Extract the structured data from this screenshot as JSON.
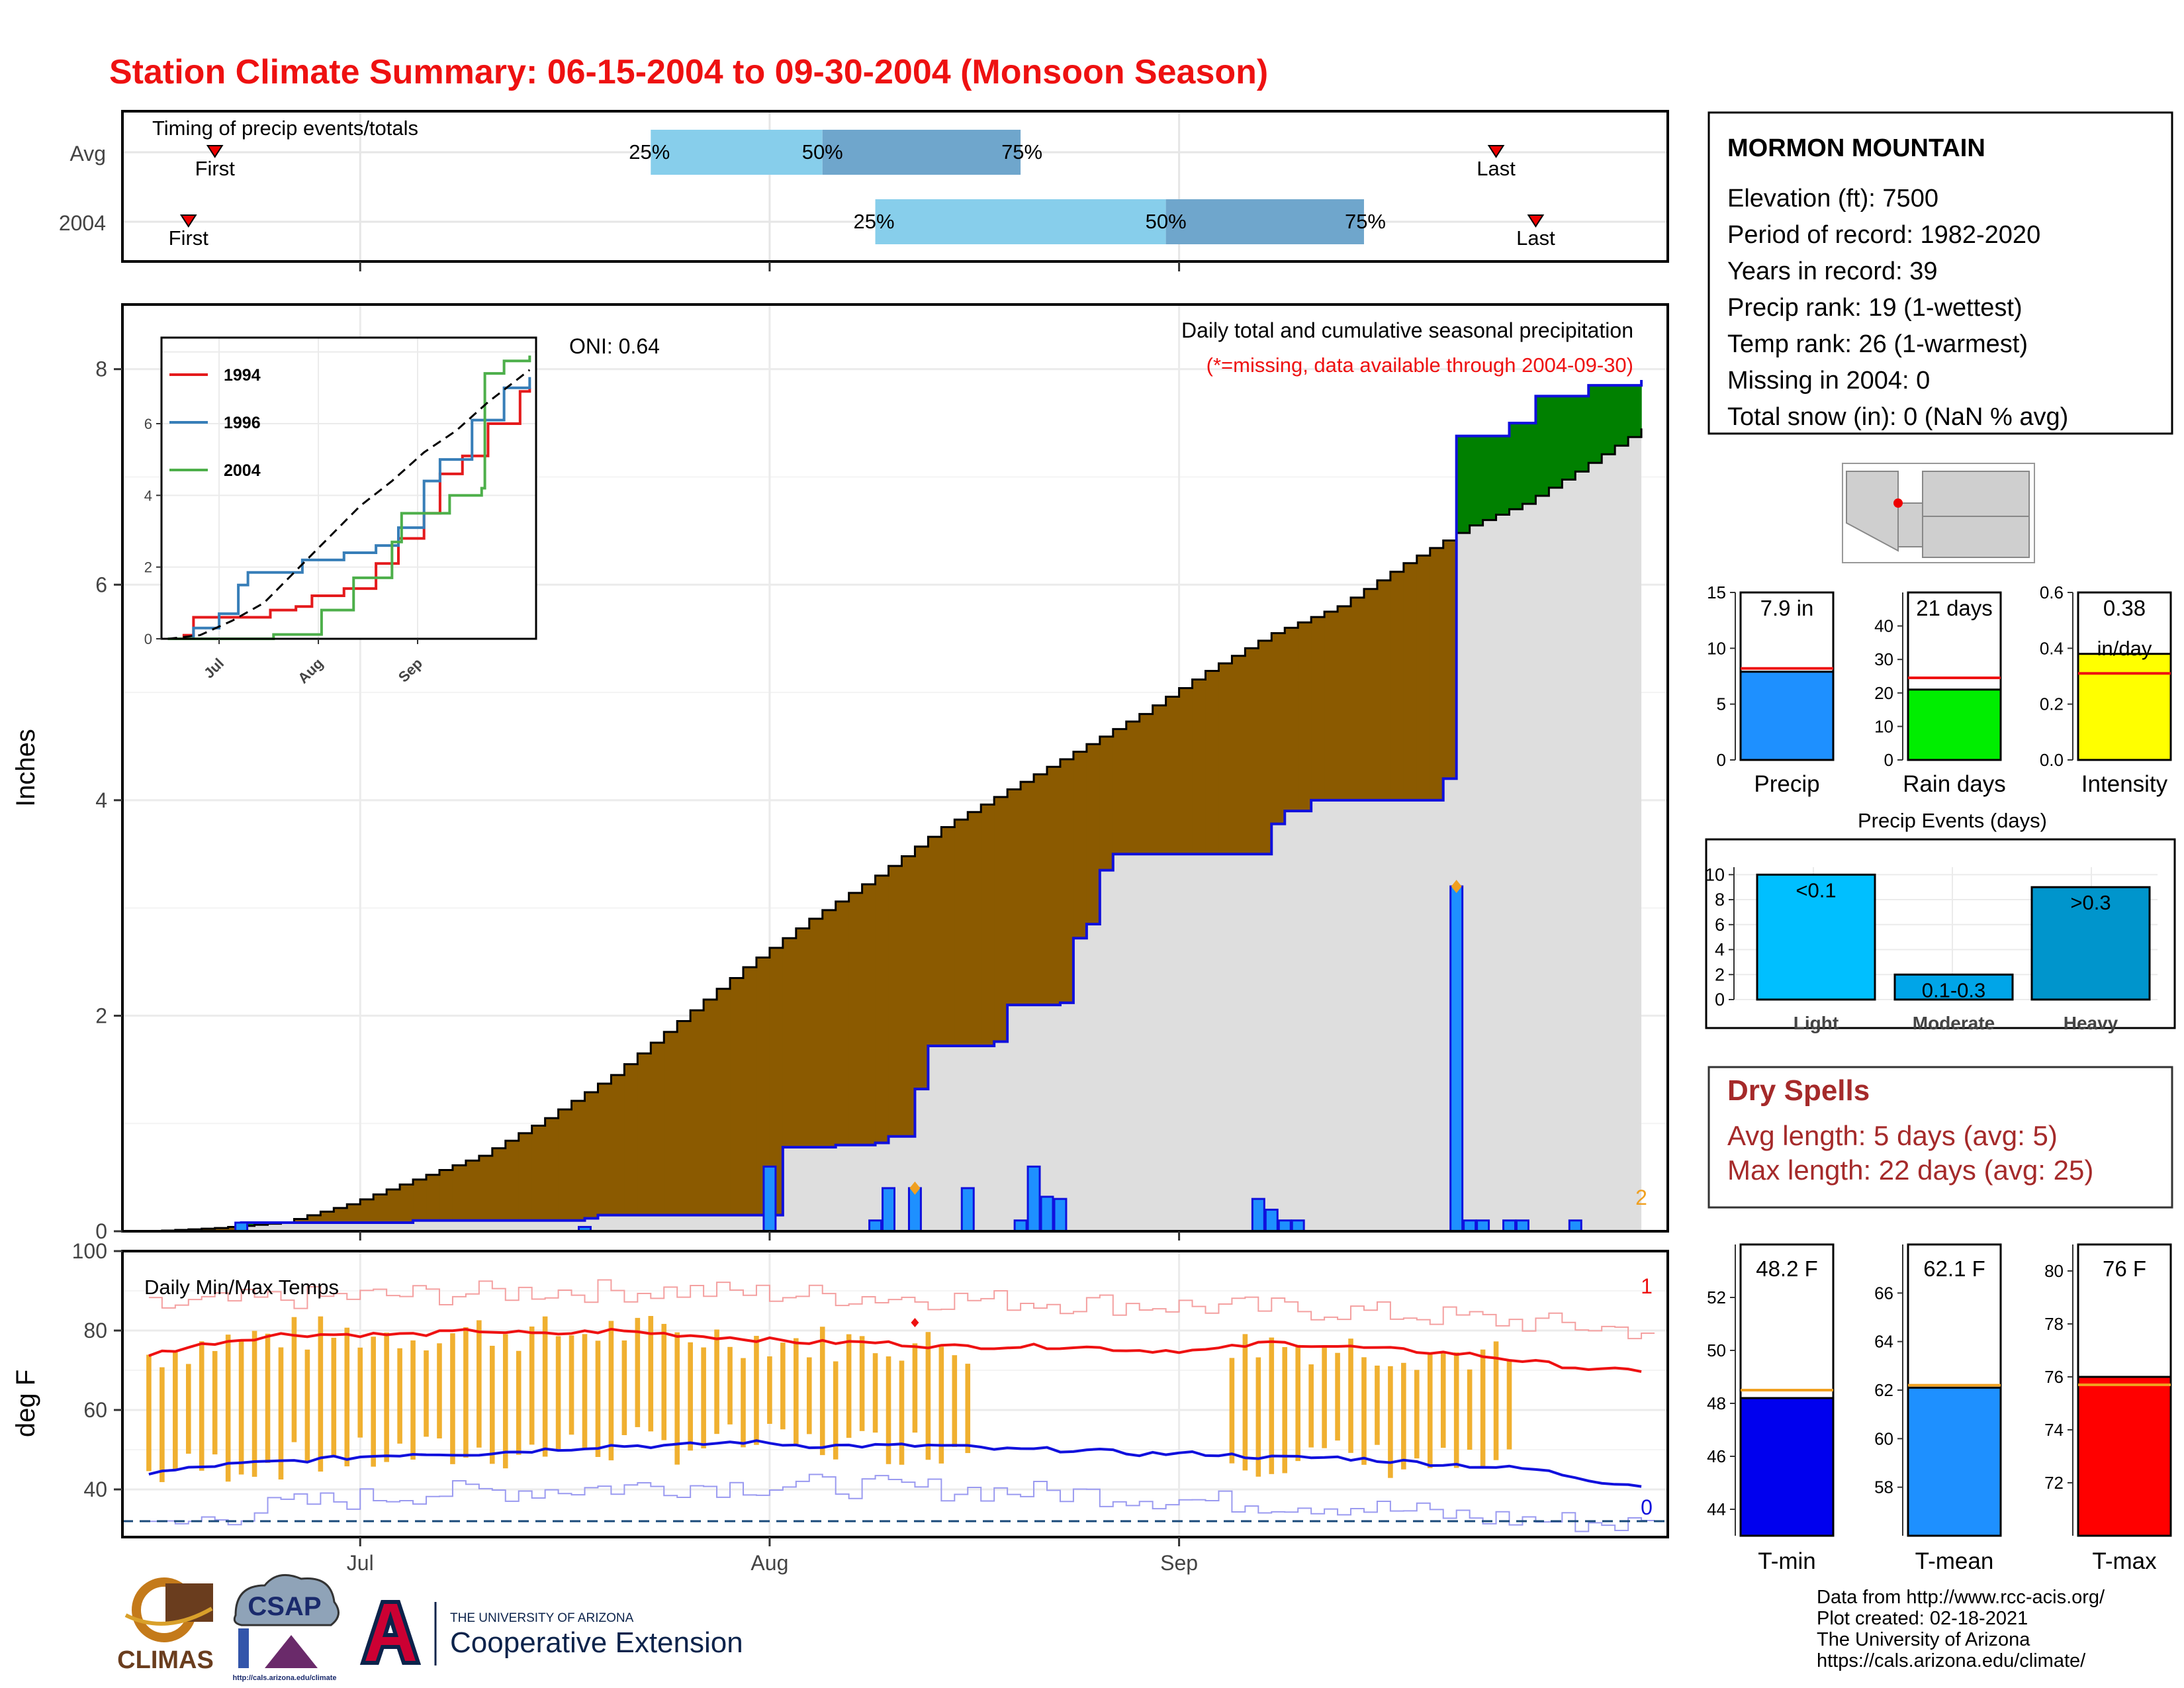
{
  "title": "Station Climate Summary: 06-15-2004 to 09-30-2004 (Monsoon Season)",
  "colors": {
    "title_red": "#ee1111",
    "light_blue": "#87ceeb",
    "mid_blue": "#6fa6cc",
    "brown": "#8b5a00",
    "green": "#008000",
    "bar_blue": "#1e90ff",
    "gold": "#f0b030",
    "tmax_red": "#ee1111",
    "tmin_blue": "#1010dd",
    "dry_red": "#a52a2a"
  },
  "timing": {
    "label": "Timing of precip events/totals",
    "rows": [
      {
        "name": "Avg",
        "first_label": "First",
        "last_label": "Last",
        "first_date": "2004-06-20",
        "last_date": "2004-09-25",
        "p25": "2004-07-23",
        "p50": "2004-08-05",
        "p75": "2004-08-20",
        "p25_label": "25%",
        "p50_label": "50%",
        "p75_label": "75%"
      },
      {
        "name": "2004",
        "first_label": "First",
        "last_label": "Last",
        "first_date": "2004-06-18",
        "last_date": "2004-09-28",
        "p25": "2004-08-09",
        "p50": "2004-08-31",
        "p75": "2004-09-15",
        "p25_label": "25%",
        "p50_label": "50%",
        "p75_label": "75%"
      }
    ]
  },
  "main_panel": {
    "ylabel": "Inches",
    "y_ticks": [
      "0",
      "2",
      "4",
      "6",
      "8"
    ],
    "header": "Daily total and cumulative seasonal precipitation",
    "missing_note": "(*=missing, data available through 2004-09-30)",
    "oni": "ONI: 0.64",
    "corner_count": "2",
    "x_ticks": [
      "Jul",
      "Aug",
      "Sep"
    ]
  },
  "inset": {
    "y_ticks": [
      "0",
      "2",
      "4",
      "6"
    ],
    "x_ticks": [
      "Jul",
      "Aug",
      "Sep"
    ],
    "legend": [
      {
        "name": "1994",
        "color": "#e41a1c"
      },
      {
        "name": "1996",
        "color": "#377eb8"
      },
      {
        "name": "2004",
        "color": "#4daf4a"
      }
    ]
  },
  "temp_panel": {
    "ylabel": "deg F",
    "label": "Daily Min/Max Temps",
    "y_ticks": [
      "40",
      "60",
      "80",
      "100"
    ],
    "count_top": "1",
    "count_bottom": "0",
    "x_ticks": [
      "Jul",
      "Aug",
      "Sep"
    ]
  },
  "station": {
    "name": "MORMON MOUNTAIN",
    "lines": [
      "Elevation (ft): 7500",
      "Period of record: 1982-2020",
      "Years in record: 39",
      "Precip rank: 19 (1-wettest)",
      "Temp rank: 26 (1-warmest)",
      "Missing in 2004: 0",
      "Total snow (in): 0 (NaN % avg)"
    ]
  },
  "small_bars": [
    {
      "id": "precip",
      "label": "Precip",
      "value_text": "7.9 in",
      "value": 7.9,
      "avg": 8.2,
      "ymax": 15,
      "ticks": [
        "0",
        "5",
        "10",
        "15"
      ],
      "color": "#1e90ff"
    },
    {
      "id": "raindays",
      "label": "Rain days",
      "value_text": "21 days",
      "value": 21,
      "avg": 24.5,
      "ymax": 50,
      "ticks": [
        "0",
        "10",
        "20",
        "30",
        "40"
      ],
      "color": "#00ee00"
    },
    {
      "id": "intensity",
      "label": "Intensity",
      "value_text": "0.38",
      "value_text2": "in/day",
      "value": 0.38,
      "avg": 0.31,
      "ymax": 0.6,
      "ticks": [
        "0.0",
        "0.2",
        "0.4",
        "0.6"
      ],
      "color": "#ffff00"
    }
  ],
  "events": {
    "title": "Precip Events (days)",
    "y_ticks": [
      "0",
      "2",
      "4",
      "6",
      "8",
      "10"
    ],
    "bars": [
      {
        "label": "Light",
        "range": "<0.1",
        "value": 10,
        "color": "#00bfff"
      },
      {
        "label": "Moderate",
        "range": "0.1-0.3",
        "value": 2,
        "color": "#00a5e8"
      },
      {
        "label": "Heavy",
        "range": ">0.3",
        "value": 9,
        "color": "#0095cc"
      }
    ]
  },
  "dry_spells": {
    "title": "Dry Spells",
    "avg_line": "Avg length: 5 days (avg: 5)",
    "max_line": "Max length: 22 days (avg: 25)"
  },
  "temp_bars": [
    {
      "label": "T-min",
      "value_text": "48.2 F",
      "value": 48.2,
      "avg": 48.5,
      "ymin": 43,
      "ymax": 54,
      "ticks": [
        "44",
        "46",
        "48",
        "50",
        "52"
      ],
      "color": "#0000ee"
    },
    {
      "label": "T-mean",
      "value_text": "62.1 F",
      "value": 62.1,
      "avg": 62.2,
      "ymin": 56,
      "ymax": 68,
      "ticks": [
        "58",
        "60",
        "62",
        "64",
        "66"
      ],
      "color": "#1e90ff"
    },
    {
      "label": "T-max",
      "value_text": "76 F",
      "value": 76.0,
      "avg": 75.7,
      "ymin": 70,
      "ymax": 81,
      "ticks": [
        "72",
        "74",
        "76",
        "78",
        "80"
      ],
      "color": "#ff0000"
    }
  ],
  "footer": {
    "lines": [
      "Data from http://www.rcc-acis.org/",
      "Plot created: 02-18-2021",
      "The University of Arizona",
      "https://cals.arizona.edu/climate/"
    ],
    "logos": {
      "climas": "CLIMAS",
      "csap": "CSAP",
      "csap_url": "http://cals.arizona.edu/climate",
      "ua_line1": "THE UNIVERSITY OF ARIZONA",
      "ua_line2": "Cooperative Extension"
    }
  },
  "chart_data": [
    {
      "type": "area",
      "title": "Daily total and cumulative seasonal precipitation",
      "ylabel": "Inches",
      "ylim": [
        0,
        8.6
      ],
      "x_range": [
        "2004-06-15",
        "2004-09-30"
      ],
      "avg_cumulative": [
        [
          0,
          0
        ],
        [
          5,
          0.03
        ],
        [
          10,
          0.08
        ],
        [
          15,
          0.25
        ],
        [
          20,
          0.48
        ],
        [
          25,
          0.7
        ],
        [
          30,
          1.05
        ],
        [
          35,
          1.45
        ],
        [
          40,
          1.95
        ],
        [
          45,
          2.45
        ],
        [
          50,
          2.9
        ],
        [
          55,
          3.3
        ],
        [
          60,
          3.75
        ],
        [
          65,
          4.1
        ],
        [
          70,
          4.45
        ],
        [
          75,
          4.8
        ],
        [
          80,
          5.2
        ],
        [
          85,
          5.55
        ],
        [
          90,
          5.8
        ],
        [
          95,
          6.2
        ],
        [
          100,
          6.55
        ],
        [
          104,
          6.75
        ],
        [
          108,
          7.05
        ],
        [
          113,
          7.45
        ]
      ],
      "cumulative_2004": [
        [
          0,
          0
        ],
        [
          7,
          0.08
        ],
        [
          20,
          0.1
        ],
        [
          33,
          0.12
        ],
        [
          34,
          0.15
        ],
        [
          47,
          0.15
        ],
        [
          48,
          0.78
        ],
        [
          52,
          0.8
        ],
        [
          55,
          0.82
        ],
        [
          56,
          0.88
        ],
        [
          58,
          1.32
        ],
        [
          59,
          1.72
        ],
        [
          64,
          1.76
        ],
        [
          65,
          2.1
        ],
        [
          69,
          2.12
        ],
        [
          70,
          2.72
        ],
        [
          71,
          2.85
        ],
        [
          72,
          3.35
        ],
        [
          73,
          3.5
        ],
        [
          84,
          3.5
        ],
        [
          85,
          3.78
        ],
        [
          86,
          3.9
        ],
        [
          88,
          4.0
        ],
        [
          98,
          4.2
        ],
        [
          99,
          7.38
        ],
        [
          103,
          7.5
        ],
        [
          105,
          7.75
        ],
        [
          109,
          7.85
        ],
        [
          113,
          7.9
        ]
      ],
      "daily_precip": [
        [
          7,
          0.08
        ],
        [
          33,
          0.04
        ],
        [
          47,
          0.6
        ],
        [
          55,
          0.1
        ],
        [
          56,
          0.4
        ],
        [
          58,
          0.4
        ],
        [
          62,
          0.4
        ],
        [
          66,
          0.1
        ],
        [
          67,
          0.6
        ],
        [
          68,
          0.32
        ],
        [
          69,
          0.3
        ],
        [
          84,
          0.3
        ],
        [
          85,
          0.2
        ],
        [
          86,
          0.1
        ],
        [
          87,
          0.1
        ],
        [
          99,
          3.2
        ],
        [
          100,
          0.1
        ],
        [
          101,
          0.1
        ],
        [
          103,
          0.1
        ],
        [
          104,
          0.1
        ],
        [
          108,
          0.1
        ]
      ],
      "daily_max_markers": [
        [
          58,
          0.4
        ],
        [
          99,
          3.2
        ]
      ]
    },
    {
      "type": "line",
      "title": "Daily Min/Max Temps",
      "ylabel": "deg F",
      "ylim": [
        28,
        100
      ],
      "tmax_avg": [
        [
          0,
          74
        ],
        [
          5,
          77
        ],
        [
          10,
          79
        ],
        [
          15,
          79
        ],
        [
          20,
          79
        ],
        [
          25,
          80
        ],
        [
          30,
          79
        ],
        [
          35,
          80
        ],
        [
          40,
          79
        ],
        [
          45,
          78
        ],
        [
          50,
          77
        ],
        [
          55,
          77
        ],
        [
          60,
          76
        ],
        [
          65,
          76
        ],
        [
          70,
          76
        ],
        [
          75,
          75
        ],
        [
          80,
          75
        ],
        [
          85,
          77
        ],
        [
          90,
          76
        ],
        [
          95,
          75
        ],
        [
          100,
          74
        ],
        [
          105,
          72
        ],
        [
          110,
          70
        ],
        [
          113,
          70
        ]
      ],
      "tmin_avg": [
        [
          0,
          44
        ],
        [
          5,
          46
        ],
        [
          10,
          47
        ],
        [
          15,
          48
        ],
        [
          20,
          49
        ],
        [
          25,
          49
        ],
        [
          30,
          50
        ],
        [
          35,
          51
        ],
        [
          40,
          51
        ],
        [
          45,
          52
        ],
        [
          50,
          51
        ],
        [
          55,
          51
        ],
        [
          60,
          51
        ],
        [
          65,
          50
        ],
        [
          70,
          50
        ],
        [
          75,
          49
        ],
        [
          80,
          49
        ],
        [
          85,
          48
        ],
        [
          90,
          48
        ],
        [
          95,
          47
        ],
        [
          100,
          46
        ],
        [
          105,
          45
        ],
        [
          110,
          42
        ],
        [
          113,
          41
        ]
      ],
      "tmax_record": [
        [
          0,
          86
        ],
        [
          10,
          88
        ],
        [
          20,
          89
        ],
        [
          30,
          90
        ],
        [
          40,
          90
        ],
        [
          50,
          89
        ],
        [
          60,
          88
        ],
        [
          70,
          87
        ],
        [
          80,
          86
        ],
        [
          90,
          85
        ],
        [
          100,
          83
        ],
        [
          113,
          80
        ]
      ],
      "tmin_record": [
        [
          0,
          30
        ],
        [
          10,
          36
        ],
        [
          20,
          39
        ],
        [
          30,
          40
        ],
        [
          40,
          41
        ],
        [
          50,
          41
        ],
        [
          60,
          40
        ],
        [
          70,
          39
        ],
        [
          80,
          37
        ],
        [
          90,
          36
        ],
        [
          100,
          33
        ],
        [
          113,
          31
        ]
      ],
      "freeze_line": 32,
      "obs_bars_spans": [
        [
          0,
          62
        ],
        [
          82,
          103
        ]
      ]
    },
    {
      "type": "line",
      "title": "Inset cumulative precipitation comparison",
      "ylim": [
        0,
        8.4
      ],
      "series": [
        {
          "name": "1994",
          "color": "#e41a1c",
          "values": [
            [
              0,
              0
            ],
            [
              5,
              0.1
            ],
            [
              8,
              0.6
            ],
            [
              30,
              0.6
            ],
            [
              32,
              0.8
            ],
            [
              40,
              0.9
            ],
            [
              45,
              1.2
            ],
            [
              55,
              1.4
            ],
            [
              65,
              2.1
            ],
            [
              72,
              2.8
            ],
            [
              80,
              3.5
            ],
            [
              85,
              4.6
            ],
            [
              92,
              5.1
            ],
            [
              100,
              6.0
            ],
            [
              110,
              6.9
            ],
            [
              113,
              7.0
            ]
          ]
        },
        {
          "name": "1996",
          "color": "#377eb8",
          "values": [
            [
              0,
              0
            ],
            [
              8,
              0.3
            ],
            [
              16,
              0.7
            ],
            [
              22,
              1.5
            ],
            [
              25,
              1.85
            ],
            [
              40,
              1.85
            ],
            [
              42,
              2.2
            ],
            [
              55,
              2.4
            ],
            [
              65,
              2.6
            ],
            [
              72,
              3.1
            ],
            [
              80,
              4.4
            ],
            [
              85,
              5.0
            ],
            [
              95,
              6.1
            ],
            [
              105,
              7.0
            ],
            [
              113,
              7.3
            ]
          ]
        },
        {
          "name": "2004",
          "color": "#4daf4a",
          "values": [
            [
              0,
              0
            ],
            [
              33,
              0.12
            ],
            [
              48,
              0.8
            ],
            [
              58,
              1.7
            ],
            [
              70,
              2.7
            ],
            [
              73,
              3.5
            ],
            [
              84,
              3.5
            ],
            [
              88,
              4.0
            ],
            [
              98,
              4.2
            ],
            [
              99,
              7.4
            ],
            [
              105,
              7.75
            ],
            [
              113,
              7.9
            ]
          ]
        }
      ],
      "average": [
        [
          0,
          0
        ],
        [
          10,
          0.1
        ],
        [
          20,
          0.5
        ],
        [
          30,
          1.0
        ],
        [
          40,
          1.9
        ],
        [
          50,
          2.8
        ],
        [
          60,
          3.7
        ],
        [
          70,
          4.4
        ],
        [
          80,
          5.2
        ],
        [
          90,
          5.8
        ],
        [
          100,
          6.6
        ],
        [
          113,
          7.5
        ]
      ]
    },
    {
      "type": "bar",
      "title": "Precip Events (days)",
      "categories": [
        "Light",
        "Moderate",
        "Heavy"
      ],
      "values": [
        10,
        2,
        9
      ]
    }
  ]
}
